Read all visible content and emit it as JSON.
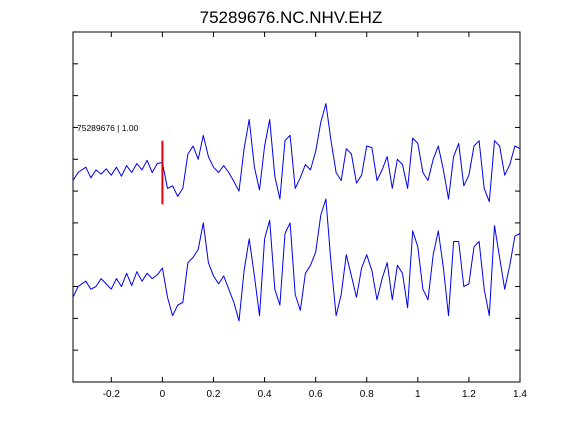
{
  "chart_data": {
    "type": "line",
    "title": "75289676.NC.NHV.EHZ",
    "xlim": [
      -0.35,
      1.4
    ],
    "xticks": [
      -0.2,
      0,
      0.2,
      0.4,
      0.6,
      0.8,
      1,
      1.2,
      1.4
    ],
    "xtick_labels": [
      "-0.2",
      "0",
      "0.2",
      "0.4",
      "0.6",
      "0.8",
      "1",
      "1.2",
      "1.4"
    ],
    "ylim": [
      -6,
      0.6
    ],
    "grid": false,
    "pick_marker": {
      "time": 0,
      "color": "#e8000b"
    },
    "annotation": "75289676 | 1.00",
    "line_color": "#0000ee",
    "series": [
      {
        "x": [
          -0.35,
          -0.33,
          -0.3,
          -0.28,
          -0.26,
          -0.24,
          -0.22,
          -0.2,
          -0.18,
          -0.16,
          -0.14,
          -0.12,
          -0.1,
          -0.08,
          -0.06,
          -0.04,
          -0.02,
          0,
          0.02,
          0.04,
          0.06,
          0.08,
          0.1,
          0.12,
          0.14,
          0.16,
          0.18,
          0.2,
          0.22,
          0.24,
          0.26,
          0.28,
          0.3,
          0.32,
          0.34,
          0.36,
          0.38,
          0.4,
          0.42,
          0.44,
          0.46,
          0.48,
          0.5,
          0.52,
          0.54,
          0.56,
          0.58,
          0.6,
          0.62,
          0.64,
          0.66,
          0.68,
          0.7,
          0.72,
          0.74,
          0.76,
          0.78,
          0.8,
          0.82,
          0.84,
          0.86,
          0.88,
          0.9,
          0.92,
          0.94,
          0.96,
          0.98,
          1,
          1.02,
          1.04,
          1.06,
          1.08,
          1.1,
          1.12,
          1.14,
          1.16,
          1.18,
          1.2,
          1.22,
          1.24,
          1.26,
          1.28,
          1.3,
          1.32,
          1.34,
          1.36,
          1.38,
          1.4
        ],
        "y": [
          -2.2,
          -2.05,
          -1.95,
          -2.15,
          -2.0,
          -2.08,
          -1.98,
          -2.1,
          -1.95,
          -2.12,
          -1.92,
          -2.05,
          -1.88,
          -2.0,
          -1.82,
          -2.05,
          -1.88,
          -1.86,
          -2.35,
          -2.3,
          -2.5,
          -2.35,
          -1.7,
          -1.55,
          -1.8,
          -1.35,
          -1.75,
          -1.95,
          -2.05,
          -1.92,
          -2.05,
          -2.22,
          -2.4,
          -1.6,
          -1.05,
          -1.95,
          -2.38,
          -1.55,
          -1.05,
          -2.12,
          -2.55,
          -1.45,
          -1.35,
          -2.35,
          -2.15,
          -1.9,
          -2.0,
          -1.65,
          -1.1,
          -0.75,
          -1.45,
          -2.05,
          -2.2,
          -1.6,
          -1.7,
          -2.25,
          -2.1,
          -1.55,
          -1.58,
          -2.2,
          -2.0,
          -1.75,
          -2.35,
          -1.8,
          -1.9,
          -2.35,
          -1.4,
          -1.5,
          -2.05,
          -2.2,
          -1.8,
          -1.55,
          -2.0,
          -2.55,
          -1.75,
          -1.5,
          -2.3,
          -2.1,
          -1.55,
          -1.45,
          -2.35,
          -2.6,
          -1.45,
          -1.55,
          -2.1,
          -1.9,
          -1.55,
          -1.6
        ]
      },
      {
        "x": [
          -0.35,
          -0.33,
          -0.3,
          -0.28,
          -0.26,
          -0.24,
          -0.22,
          -0.2,
          -0.18,
          -0.16,
          -0.14,
          -0.12,
          -0.1,
          -0.08,
          -0.06,
          -0.04,
          -0.02,
          0,
          0.02,
          0.04,
          0.06,
          0.08,
          0.1,
          0.12,
          0.14,
          0.16,
          0.18,
          0.2,
          0.22,
          0.24,
          0.26,
          0.28,
          0.3,
          0.32,
          0.34,
          0.36,
          0.38,
          0.4,
          0.42,
          0.44,
          0.46,
          0.48,
          0.5,
          0.52,
          0.54,
          0.56,
          0.58,
          0.6,
          0.62,
          0.64,
          0.66,
          0.68,
          0.7,
          0.72,
          0.74,
          0.76,
          0.78,
          0.8,
          0.82,
          0.84,
          0.86,
          0.88,
          0.9,
          0.92,
          0.94,
          0.96,
          0.98,
          1,
          1.02,
          1.04,
          1.06,
          1.08,
          1.1,
          1.12,
          1.14,
          1.16,
          1.18,
          1.2,
          1.22,
          1.24,
          1.26,
          1.28,
          1.3,
          1.32,
          1.34,
          1.36,
          1.38,
          1.4
        ],
        "y": [
          -4.4,
          -4.2,
          -4.1,
          -4.25,
          -4.2,
          -4.05,
          -4.15,
          -4.25,
          -4.05,
          -4.2,
          -3.95,
          -4.18,
          -3.92,
          -4.1,
          -3.95,
          -4.05,
          -3.98,
          -3.85,
          -4.4,
          -4.75,
          -4.55,
          -4.5,
          -3.75,
          -3.65,
          -3.5,
          -3.0,
          -3.75,
          -4.0,
          -4.15,
          -4.0,
          -4.25,
          -4.5,
          -4.85,
          -3.9,
          -3.3,
          -4.0,
          -4.75,
          -3.3,
          -2.95,
          -4.25,
          -4.55,
          -3.2,
          -3.0,
          -4.35,
          -4.65,
          -3.95,
          -3.8,
          -3.55,
          -2.85,
          -2.55,
          -3.75,
          -4.75,
          -4.35,
          -3.6,
          -4.0,
          -4.4,
          -3.85,
          -3.6,
          -3.9,
          -4.45,
          -4.05,
          -3.75,
          -4.45,
          -3.8,
          -3.95,
          -4.6,
          -3.15,
          -3.45,
          -4.25,
          -4.45,
          -3.6,
          -3.15,
          -3.85,
          -4.75,
          -3.35,
          -3.35,
          -4.2,
          -4.15,
          -3.45,
          -3.35,
          -4.25,
          -4.75,
          -3.05,
          -3.65,
          -4.25,
          -3.8,
          -3.25,
          -3.2
        ]
      }
    ]
  }
}
